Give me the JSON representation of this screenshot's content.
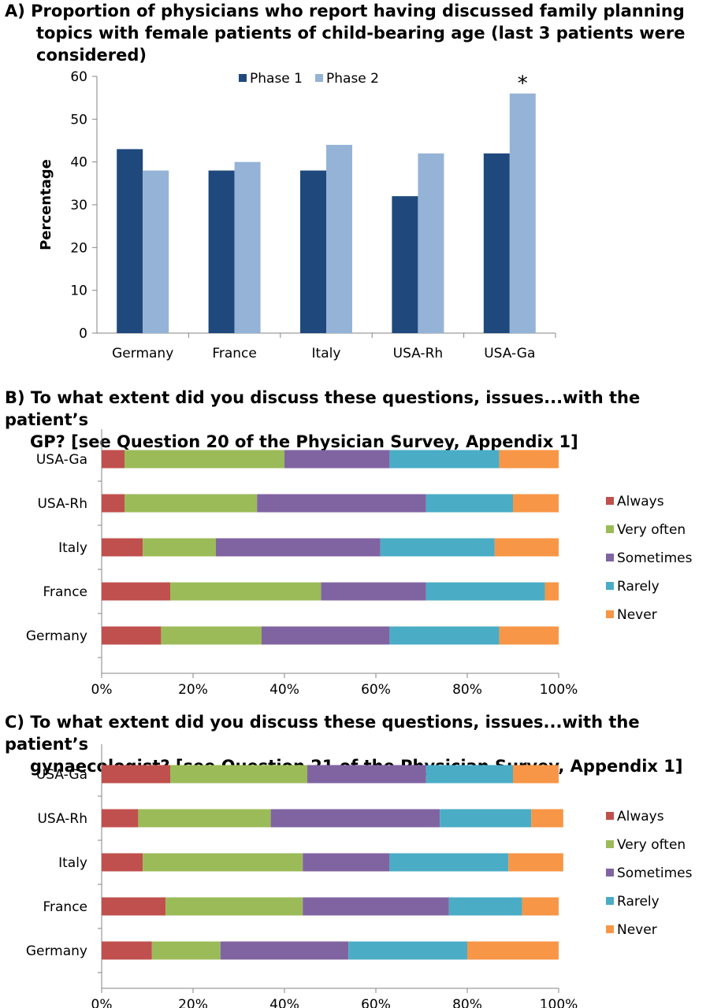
{
  "chart_data": [
    {
      "type": "bar",
      "title": "A) Proportion of physicians who report having discussed family planning topics with female patients of child-bearing age (last 3 patients were considered)",
      "ylabel": "Percentage",
      "xlabel": "",
      "ylim": [
        0,
        60
      ],
      "yticks": [
        "0",
        "10",
        "20",
        "30",
        "40",
        "50",
        "60"
      ],
      "categories": [
        "Germany",
        "France",
        "Italy",
        "USA-Rh",
        "USA-Ga"
      ],
      "series": [
        {
          "name": "Phase 1",
          "color": "#1F497D",
          "values": [
            43,
            38,
            38,
            32,
            42
          ]
        },
        {
          "name": "Phase 2",
          "color": "#95B3D7",
          "values": [
            38,
            40,
            44,
            42,
            56
          ]
        }
      ],
      "annotation": {
        "text": "*",
        "category": "USA-Ga",
        "series": "Phase 2"
      },
      "legend": "top-center",
      "grid": false
    },
    {
      "type": "bar",
      "orientation": "horizontal-stacked-100",
      "title": "B) To what extent did you discuss these questions, issues...with the patient’s GP? [see Question 20 of the Physician Survey, Appendix 1]",
      "xticks": [
        "0%",
        "20%",
        "40%",
        "60%",
        "80%",
        "100%"
      ],
      "xlim": [
        0,
        100
      ],
      "categories": [
        "USA-Ga",
        "USA-Rh",
        "Italy",
        "France",
        "Germany"
      ],
      "series": [
        {
          "name": "Always",
          "color": "#C0504D",
          "values": [
            5,
            5,
            9,
            15,
            13
          ]
        },
        {
          "name": "Very often",
          "color": "#9BBB59",
          "values": [
            35,
            29,
            16,
            33,
            22
          ]
        },
        {
          "name": "Sometimes",
          "color": "#8064A2",
          "values": [
            23,
            37,
            36,
            23,
            28
          ]
        },
        {
          "name": "Rarely",
          "color": "#4BACC6",
          "values": [
            24,
            19,
            25,
            26,
            24
          ]
        },
        {
          "name": "Never",
          "color": "#F79646",
          "values": [
            13,
            10,
            14,
            3,
            13
          ]
        }
      ],
      "legend": "right",
      "grid": false
    },
    {
      "type": "bar",
      "orientation": "horizontal-stacked-100",
      "title": "C) To what extent did you discuss these questions, issues...with the patient’s gynaecologist? [see Question 21 of the Physician Survey, Appendix 1]",
      "xticks": [
        "0%",
        "20%",
        "40%",
        "60%",
        "80%",
        "100%"
      ],
      "xlim": [
        0,
        100
      ],
      "categories": [
        "USA-Ga",
        "USA-Rh",
        "Italy",
        "France",
        "Germany"
      ],
      "series": [
        {
          "name": "Always",
          "color": "#C0504D",
          "values": [
            15,
            8,
            9,
            14,
            11
          ]
        },
        {
          "name": "Very often",
          "color": "#9BBB59",
          "values": [
            30,
            29,
            35,
            30,
            15
          ]
        },
        {
          "name": "Sometimes",
          "color": "#8064A2",
          "values": [
            26,
            37,
            19,
            32,
            28
          ]
        },
        {
          "name": "Rarely",
          "color": "#4BACC6",
          "values": [
            19,
            20,
            26,
            16,
            26
          ]
        },
        {
          "name": "Never",
          "color": "#F79646",
          "values": [
            10,
            7,
            12,
            8,
            20
          ]
        }
      ],
      "legend": "right",
      "grid": false
    }
  ]
}
